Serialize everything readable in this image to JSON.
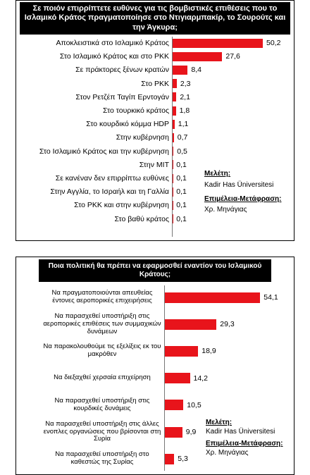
{
  "chart_data": [
    {
      "type": "bar",
      "orientation": "horizontal",
      "title": "Σε ποιόν επιρρίπτετε ευθύνες για τις βομβιστικές επιθέσεις που το Ισλαμικό Κράτος πραγματοποίησε στο Ντιγιαρμπακίρ, το Σουρούτς και την Άγκυρα;",
      "categories": [
        "Αποκλειστικά στο Ισλαμικό Κράτος",
        "Στο Ισλαμικό Κράτος και στο PKK",
        "Σε πράκτορες ξένων κρατών",
        "Στο PKK",
        "Στον Ρετζέπ Ταγίπ Ερντογάν",
        "Στο τουρκικό κράτος",
        "Στο κουρδικό κόμμα HDP",
        "Στην κυβέρνηση",
        "Στο Ισλαμικό Κράτος και την κυβέρνηση",
        "Στην MIT",
        "Σε κανέναν δεν επιρρίπτω ευθύνες",
        "Στην Αγγλία, το Ισραήλ και τη Γαλλία",
        "Στο PKK και στην κυβέρνηση",
        "Στο βαθύ κράτος"
      ],
      "values": [
        50.2,
        27.6,
        8.4,
        2.3,
        2.1,
        1.8,
        1.1,
        0.7,
        0.5,
        0.1,
        0.1,
        0.1,
        0.1,
        0.1
      ],
      "value_labels": [
        "50,2",
        "27,6",
        "8,4",
        "2,3",
        "2,1",
        "1,8",
        "1,1",
        "0,7",
        "0,5",
        "0,1",
        "0,1",
        "0,1",
        "0,1",
        "0,1"
      ],
      "color": "#e8141b",
      "xlim": [
        0,
        60
      ],
      "annotations": [
        "Μελέτη:",
        "Kadir Has Üniversitesi",
        "Επιμέλεια-Μετάφραση:",
        "Χρ. Μηνάγιας"
      ]
    },
    {
      "type": "bar",
      "orientation": "horizontal",
      "title": "Ποια πολιτική θα πρέπει να εφαρμοσθεί εναντίον του Ισλαμικού Κράτους;",
      "categories": [
        "Να πραγματοποιούνται απευθείας έντονες αεροπορικές επιχειρήσεις",
        "Να παρασχεθεί υποστήριξη στις αεροπορικές επιθέσεις των συμμαχικών δυνάμεων",
        "Να παρακολουθούμε τις εξελίξεις εκ του μακρόθεν",
        "Να διεξαχθεί χερσαία επιχείρηση",
        "Να παρασχεθεί υποστήριξη στις κουρδικές δυνάμεις",
        "Να παρασχεθεί υποστήριξη στις άλλες ενοπλες οργανώσεις που βρίσονται στη Συρία",
        "Να παρασχεθεί υποστήριξη στο καθεστώς της Συρίας"
      ],
      "values": [
        54.1,
        29.3,
        18.9,
        14.2,
        10.5,
        9.9,
        5.3
      ],
      "value_labels": [
        "54,1",
        "29,3",
        "18,9",
        "14,2",
        "10,5",
        "9,9",
        "5,3"
      ],
      "color": "#e8141b",
      "xlim": [
        0,
        60
      ],
      "annotations": [
        "Μελέτη:",
        "Kadir Has Üniversitesi",
        "Επιμέλεια-Μετάφραση:",
        "Χρ. Μηνάγιας"
      ]
    }
  ]
}
